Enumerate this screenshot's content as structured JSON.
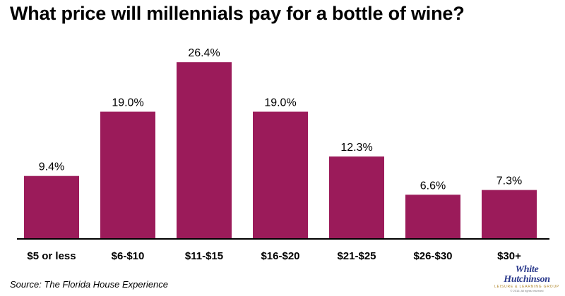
{
  "chart_data": {
    "type": "bar",
    "title": "What price will millennials pay for a bottle of wine?",
    "categories": [
      "$5 or less",
      "$6-$10",
      "$11-$15",
      "$16-$20",
      "$21-$25",
      "$26-$30",
      "$30+"
    ],
    "values": [
      9.4,
      19.0,
      26.4,
      19.0,
      12.3,
      6.6,
      7.3
    ],
    "value_labels": [
      "9.4%",
      "19.0%",
      "26.4%",
      "19.0%",
      "12.3%",
      "6.6%",
      "7.3%"
    ],
    "xlabel": "",
    "ylabel": "",
    "ylim": [
      0,
      28
    ],
    "grid": false,
    "legend": "none",
    "bar_color": "#9b1b5a",
    "axis_color": "#000000"
  },
  "source": "Source: The Florida House Experience",
  "logo": {
    "line1": "White",
    "line2": "Hutchinson",
    "tagline": "Leisure & Learning Group",
    "fine_print": "© 2016, All rights reserved",
    "color": "#2b3a8c",
    "accent_color": "#b0872c"
  }
}
